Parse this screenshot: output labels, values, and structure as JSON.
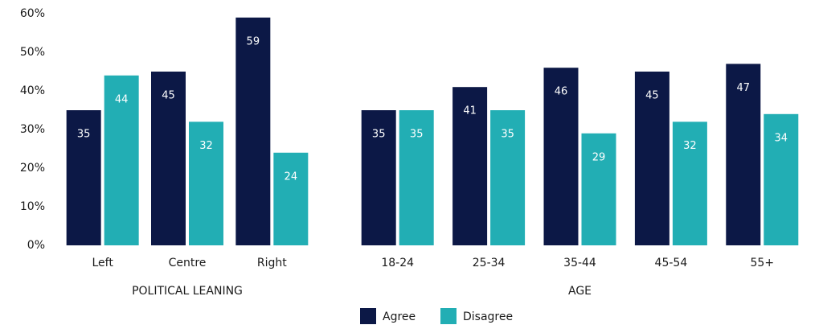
{
  "chart_data": {
    "type": "bar",
    "ylim": [
      0,
      60
    ],
    "yticks": [
      {
        "value": 0,
        "label": "0%"
      },
      {
        "value": 10,
        "label": "10%"
      },
      {
        "value": 20,
        "label": "20%"
      },
      {
        "value": 30,
        "label": "30%"
      },
      {
        "value": 40,
        "label": "40%"
      },
      {
        "value": 50,
        "label": "50%"
      },
      {
        "value": 60,
        "label": "60%"
      }
    ],
    "series": [
      {
        "name": "Agree",
        "color": "#0c1846"
      },
      {
        "name": "Disagree",
        "color": "#22aeb4"
      }
    ],
    "groups": [
      {
        "label": "POLITICAL LEANING",
        "categories": [
          "Left",
          "Centre",
          "Right"
        ],
        "values": [
          [
            35,
            45,
            59
          ],
          [
            44,
            32,
            24
          ]
        ]
      },
      {
        "label": "AGE",
        "categories": [
          "18-24",
          "25-34",
          "35-44",
          "45-54",
          "55+"
        ],
        "values": [
          [
            35,
            41,
            46,
            45,
            47
          ],
          [
            35,
            35,
            29,
            32,
            34
          ]
        ]
      }
    ]
  }
}
